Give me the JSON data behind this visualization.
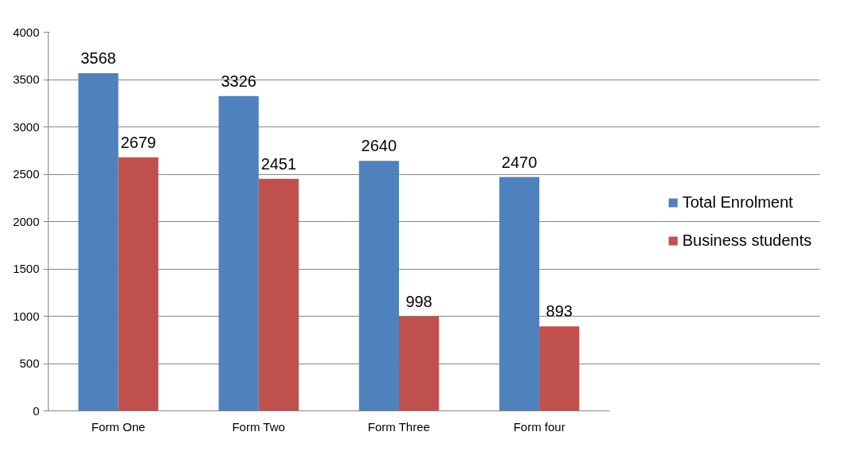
{
  "chart_data": {
    "type": "bar",
    "categories": [
      "Form One",
      "Form Two",
      "Form Three",
      "Form four"
    ],
    "series": [
      {
        "name": "Total Enrolment",
        "color": "#4f81bd",
        "values": [
          3568,
          3326,
          2640,
          2470
        ]
      },
      {
        "name": "Business students",
        "color": "#c0504d",
        "values": [
          2679,
          2451,
          998,
          893
        ]
      }
    ],
    "ylim": [
      0,
      4000
    ],
    "yticks": [
      0,
      500,
      1000,
      1500,
      2000,
      2500,
      3000,
      3500,
      4000
    ],
    "grid": "y",
    "legend": "right",
    "data_labels": true
  }
}
